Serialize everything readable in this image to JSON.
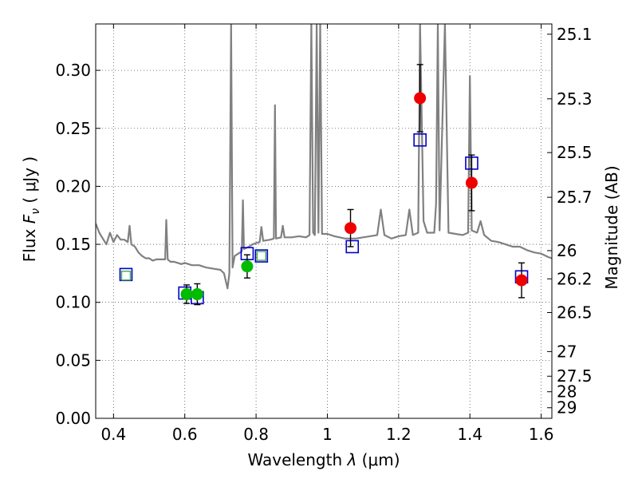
{
  "chart_data": {
    "type": "scatter",
    "xlabel_prefix": "Wavelength  ",
    "xlabel_symbol": "λ",
    "xlabel_suffix": " (μm)",
    "ylabel_prefix": "Flux  ",
    "ylabel_symbol": "F",
    "ylabel_subscript": "ν",
    "ylabel_suffix": "  ( μJy )",
    "y2label": "Magnitude (AB)",
    "xlim": [
      0.35,
      1.63
    ],
    "ylim": [
      0.0,
      0.34
    ],
    "grid": true,
    "x_ticks": [
      "0.4",
      "0.6",
      "0.8",
      "1",
      "1.2",
      "1.4",
      "1.6"
    ],
    "x_tick_values": [
      0.4,
      0.6,
      0.8,
      1.0,
      1.2,
      1.4,
      1.6
    ],
    "y_ticks": [
      "0.00",
      "0.05",
      "0.10",
      "0.15",
      "0.20",
      "0.25",
      "0.30"
    ],
    "y_tick_values": [
      0.0,
      0.05,
      0.1,
      0.15,
      0.2,
      0.25,
      0.3
    ],
    "mag_ticks": [
      "25.1",
      "25.3",
      "25.5",
      "25.7",
      "26",
      "26.2",
      "26.5",
      "27",
      "27.5",
      "28",
      "29"
    ],
    "mag_tick_values": [
      25.1,
      25.3,
      25.5,
      25.7,
      26.0,
      26.2,
      26.5,
      27.0,
      27.5,
      28.0,
      29.0
    ],
    "colors": {
      "template": "#808080",
      "model": "#0000cc",
      "optical": "#00bb00",
      "infrared": "#ee0000",
      "errorbar": "#000000",
      "grid": "#555555"
    },
    "series": [
      {
        "marker": "open-square",
        "points": [
          {
            "x": 0.435,
            "y": 0.124
          },
          {
            "x": 0.6,
            "y": 0.108
          },
          {
            "x": 0.635,
            "y": 0.104
          },
          {
            "x": 0.775,
            "y": 0.142
          },
          {
            "x": 0.815,
            "y": 0.14
          },
          {
            "x": 1.07,
            "y": 0.148
          },
          {
            "x": 1.26,
            "y": 0.24
          },
          {
            "x": 1.405,
            "y": 0.22
          },
          {
            "x": 1.545,
            "y": 0.122
          }
        ]
      },
      {
        "marker": "open-square-green",
        "points": [
          {
            "x": 0.435,
            "y": 0.123
          },
          {
            "x": 0.815,
            "y": 0.14
          }
        ]
      },
      {
        "marker": "filled-circle-green",
        "points": [
          {
            "x": 0.605,
            "y": 0.107,
            "err": 0.008
          },
          {
            "x": 0.635,
            "y": 0.107,
            "err": 0.009
          },
          {
            "x": 0.775,
            "y": 0.131,
            "err": 0.01
          }
        ]
      },
      {
        "marker": "filled-circle-red",
        "points": [
          {
            "x": 1.065,
            "y": 0.164,
            "err": 0.016
          },
          {
            "x": 1.26,
            "y": 0.276,
            "err": 0.029
          },
          {
            "x": 1.405,
            "y": 0.203,
            "err": 0.024
          },
          {
            "x": 1.545,
            "y": 0.119,
            "err": 0.015
          }
        ]
      }
    ],
    "template_spectrum": [
      [
        0.35,
        0.168
      ],
      [
        0.36,
        0.16
      ],
      [
        0.37,
        0.155
      ],
      [
        0.38,
        0.15
      ],
      [
        0.39,
        0.16
      ],
      [
        0.4,
        0.152
      ],
      [
        0.41,
        0.158
      ],
      [
        0.42,
        0.154
      ],
      [
        0.43,
        0.154
      ],
      [
        0.44,
        0.152
      ],
      [
        0.445,
        0.166
      ],
      [
        0.45,
        0.15
      ],
      [
        0.46,
        0.148
      ],
      [
        0.47,
        0.143
      ],
      [
        0.48,
        0.14
      ],
      [
        0.49,
        0.138
      ],
      [
        0.5,
        0.138
      ],
      [
        0.51,
        0.136
      ],
      [
        0.52,
        0.137
      ],
      [
        0.53,
        0.137
      ],
      [
        0.545,
        0.137
      ],
      [
        0.548,
        0.171
      ],
      [
        0.552,
        0.137
      ],
      [
        0.56,
        0.135
      ],
      [
        0.57,
        0.135
      ],
      [
        0.58,
        0.134
      ],
      [
        0.59,
        0.133
      ],
      [
        0.6,
        0.134
      ],
      [
        0.62,
        0.132
      ],
      [
        0.64,
        0.132
      ],
      [
        0.66,
        0.13
      ],
      [
        0.68,
        0.129
      ],
      [
        0.7,
        0.128
      ],
      [
        0.71,
        0.125
      ],
      [
        0.72,
        0.112
      ],
      [
        0.725,
        0.125
      ],
      [
        0.73,
        0.34
      ],
      [
        0.734,
        0.13
      ],
      [
        0.74,
        0.14
      ],
      [
        0.75,
        0.142
      ],
      [
        0.76,
        0.144
      ],
      [
        0.763,
        0.188
      ],
      [
        0.766,
        0.146
      ],
      [
        0.78,
        0.148
      ],
      [
        0.79,
        0.15
      ],
      [
        0.8,
        0.151
      ],
      [
        0.81,
        0.152
      ],
      [
        0.815,
        0.165
      ],
      [
        0.82,
        0.153
      ],
      [
        0.84,
        0.154
      ],
      [
        0.85,
        0.155
      ],
      [
        0.853,
        0.27
      ],
      [
        0.856,
        0.155
      ],
      [
        0.87,
        0.156
      ],
      [
        0.875,
        0.166
      ],
      [
        0.88,
        0.156
      ],
      [
        0.9,
        0.156
      ],
      [
        0.92,
        0.157
      ],
      [
        0.94,
        0.156
      ],
      [
        0.95,
        0.158
      ],
      [
        0.955,
        0.34
      ],
      [
        0.96,
        0.16
      ],
      [
        0.965,
        0.158
      ],
      [
        0.97,
        0.34
      ],
      [
        0.975,
        0.16
      ],
      [
        0.98,
        0.34
      ],
      [
        0.985,
        0.159
      ],
      [
        1.0,
        0.159
      ],
      [
        1.02,
        0.157
      ],
      [
        1.05,
        0.155
      ],
      [
        1.08,
        0.155
      ],
      [
        1.1,
        0.156
      ],
      [
        1.12,
        0.157
      ],
      [
        1.14,
        0.158
      ],
      [
        1.15,
        0.18
      ],
      [
        1.16,
        0.158
      ],
      [
        1.18,
        0.155
      ],
      [
        1.2,
        0.157
      ],
      [
        1.22,
        0.158
      ],
      [
        1.23,
        0.18
      ],
      [
        1.24,
        0.158
      ],
      [
        1.255,
        0.16
      ],
      [
        1.26,
        0.34
      ],
      [
        1.27,
        0.17
      ],
      [
        1.28,
        0.16
      ],
      [
        1.3,
        0.16
      ],
      [
        1.305,
        0.185
      ],
      [
        1.31,
        0.34
      ],
      [
        1.315,
        0.162
      ],
      [
        1.33,
        0.34
      ],
      [
        1.34,
        0.16
      ],
      [
        1.36,
        0.159
      ],
      [
        1.38,
        0.158
      ],
      [
        1.395,
        0.16
      ],
      [
        1.4,
        0.295
      ],
      [
        1.405,
        0.162
      ],
      [
        1.42,
        0.16
      ],
      [
        1.43,
        0.17
      ],
      [
        1.44,
        0.158
      ],
      [
        1.46,
        0.153
      ],
      [
        1.48,
        0.152
      ],
      [
        1.5,
        0.15
      ],
      [
        1.52,
        0.148
      ],
      [
        1.54,
        0.148
      ],
      [
        1.56,
        0.145
      ],
      [
        1.58,
        0.143
      ],
      [
        1.6,
        0.142
      ],
      [
        1.62,
        0.139
      ],
      [
        1.63,
        0.138
      ]
    ]
  }
}
